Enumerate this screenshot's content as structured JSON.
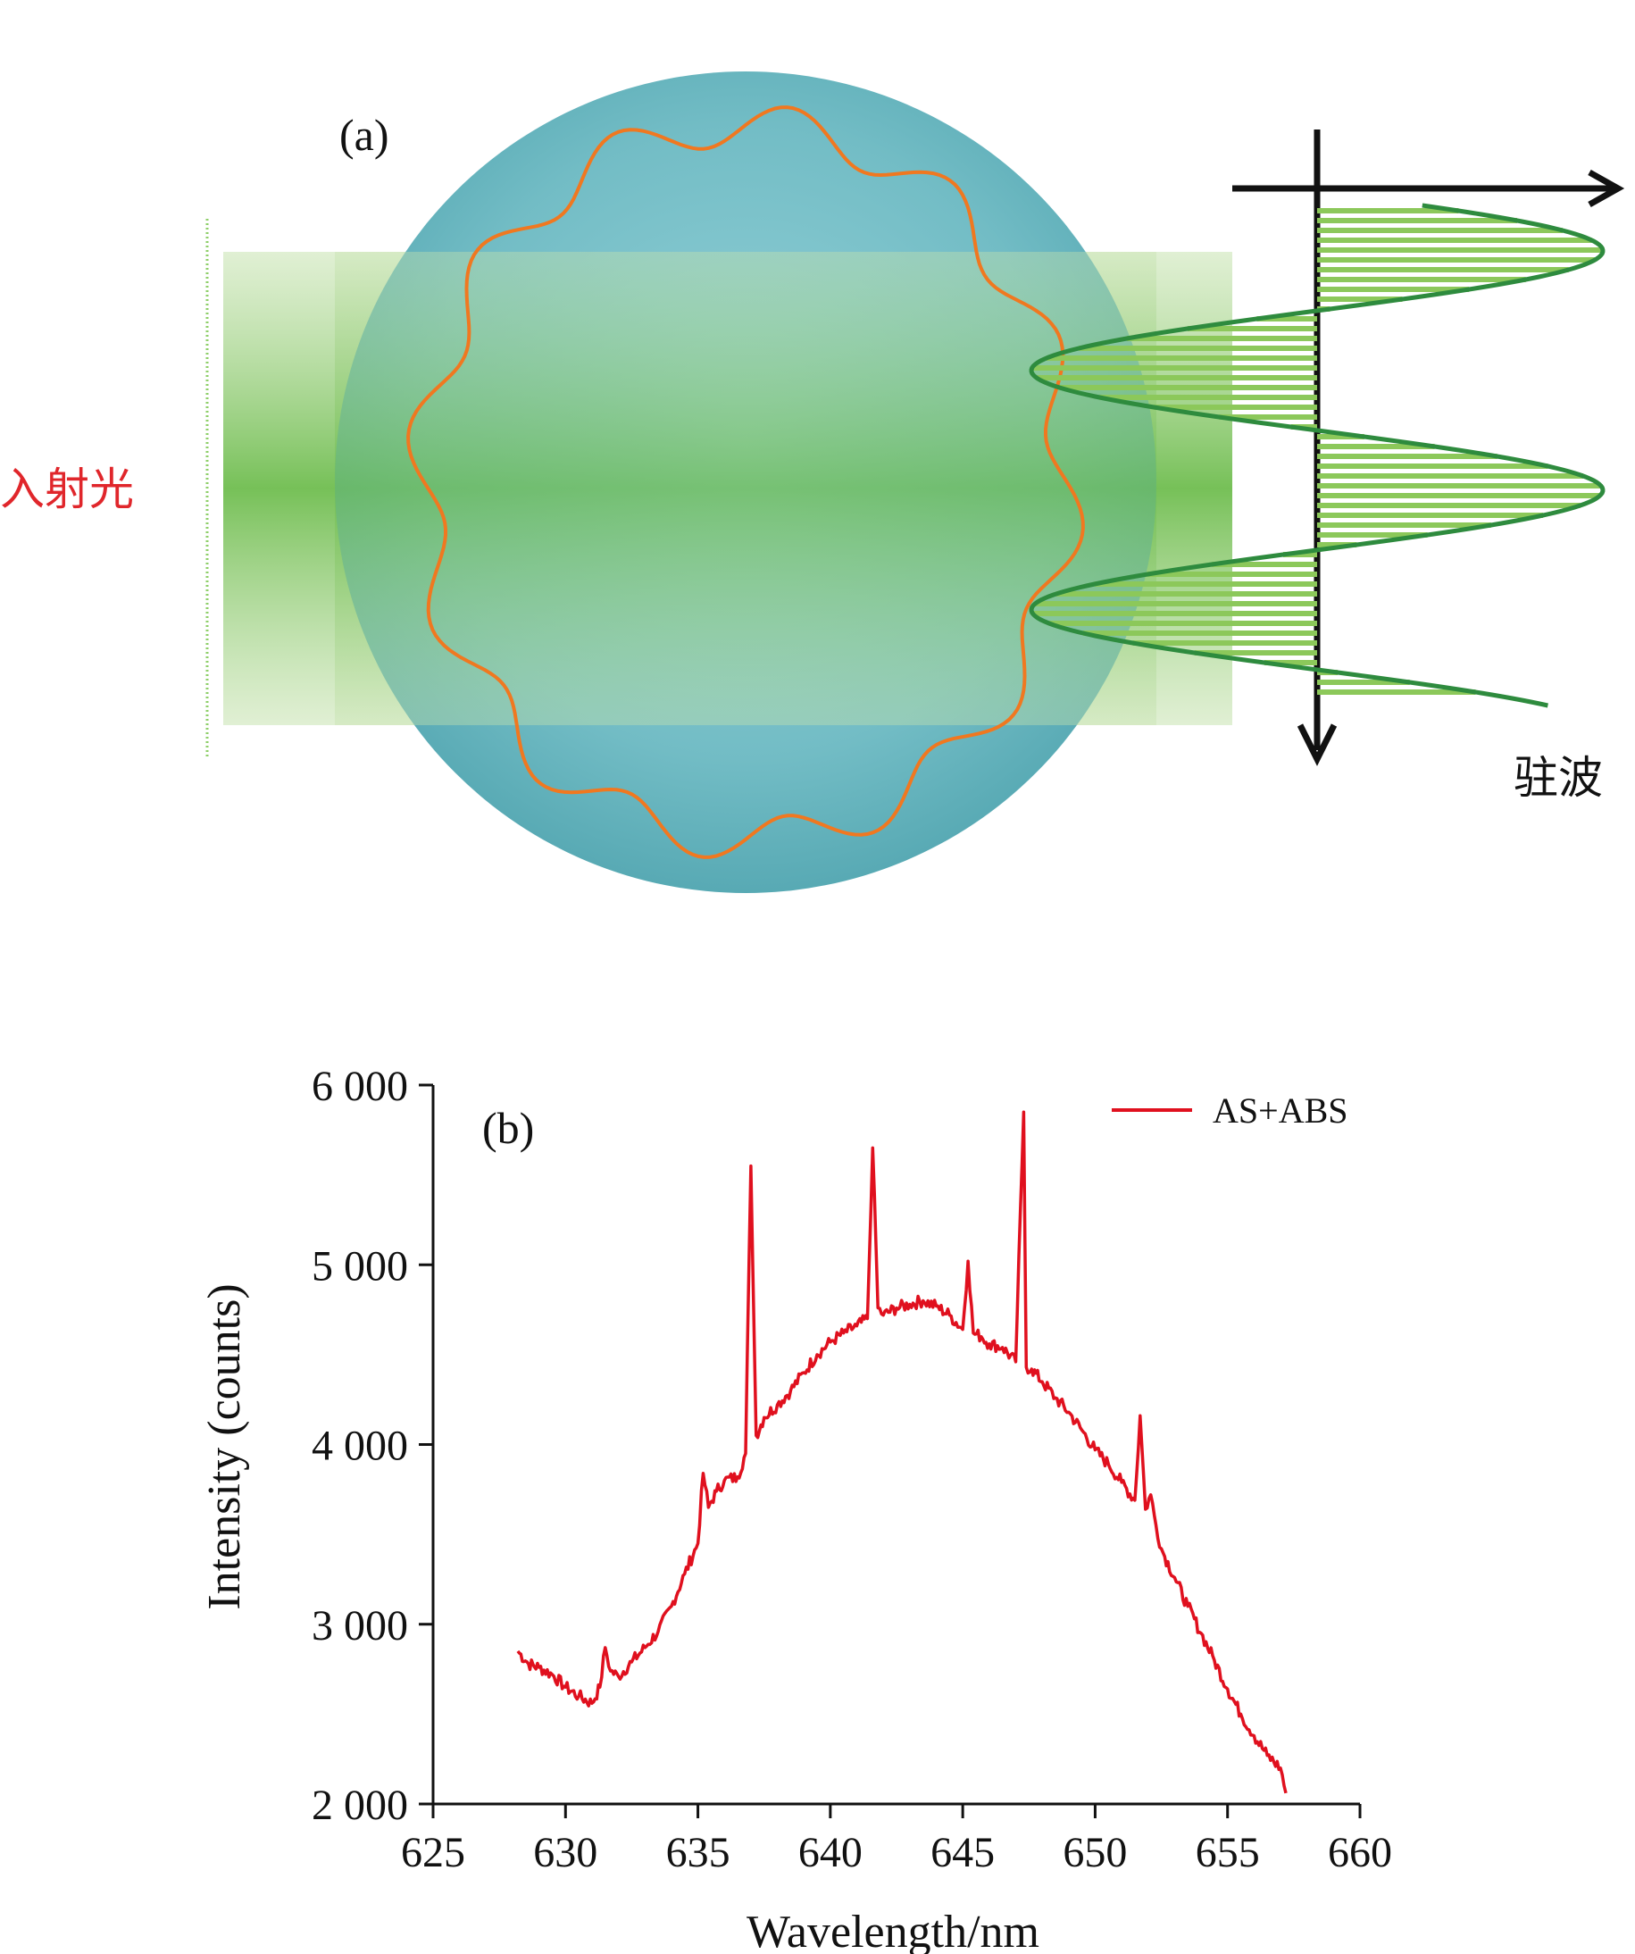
{
  "panel_a": {
    "label": "(a)",
    "incident_light_label": "入射光",
    "standing_wave_label": "驻波",
    "colors": {
      "incident_label": "#e0262b",
      "whispering_wave": "#f07820",
      "standing_wave": "#2e8b3e",
      "beam": "#7cc058",
      "sphere": "#6cb8c0"
    }
  },
  "chart_data": {
    "type": "line",
    "panel_label": "(b)",
    "xlabel": "Wavelength/nm",
    "ylabel": "Intensity (counts)",
    "xlim": [
      625,
      660
    ],
    "ylim": [
      2000,
      6000
    ],
    "x_ticks": [
      625,
      630,
      635,
      640,
      645,
      650,
      655,
      660
    ],
    "y_ticks": [
      2000,
      3000,
      4000,
      5000,
      6000
    ],
    "y_tick_labels": [
      "2 000",
      "3 000",
      "4 000",
      "5 000",
      "6 000"
    ],
    "legend_position": "top-right",
    "grid": false,
    "series": [
      {
        "name": "AS+ABS",
        "color": "#e0101e",
        "x": [
          628.2,
          628.6,
          629.0,
          629.5,
          630.0,
          630.5,
          631.0,
          631.3,
          631.5,
          631.7,
          632.0,
          632.5,
          633.0,
          633.5,
          634.0,
          634.5,
          635.0,
          635.2,
          635.4,
          635.7,
          636.0,
          636.5,
          636.8,
          637.0,
          637.2,
          637.5,
          638.0,
          638.5,
          639.0,
          639.5,
          640.0,
          640.5,
          641.0,
          641.4,
          641.6,
          641.8,
          642.0,
          642.5,
          643.0,
          643.5,
          644.0,
          644.5,
          645.0,
          645.2,
          645.4,
          645.7,
          646.0,
          646.5,
          647.0,
          647.3,
          647.4,
          647.6,
          648.0,
          648.5,
          649.0,
          649.5,
          650.0,
          650.5,
          651.0,
          651.5,
          651.7,
          651.9,
          652.1,
          652.3,
          652.5,
          653.0,
          653.5,
          654.0,
          654.5,
          655.0,
          655.5,
          656.0,
          656.5,
          657.0,
          657.2
        ],
        "values": [
          2850,
          2780,
          2760,
          2720,
          2650,
          2600,
          2560,
          2650,
          2870,
          2740,
          2710,
          2790,
          2870,
          2960,
          3100,
          3280,
          3450,
          3840,
          3650,
          3740,
          3800,
          3820,
          3950,
          5550,
          4050,
          4150,
          4220,
          4300,
          4400,
          4500,
          4570,
          4620,
          4660,
          4700,
          5650,
          4760,
          4720,
          4760,
          4780,
          4800,
          4770,
          4720,
          4640,
          5020,
          4620,
          4600,
          4560,
          4540,
          4460,
          5850,
          4430,
          4420,
          4350,
          4260,
          4180,
          4080,
          3970,
          3890,
          3790,
          3690,
          4160,
          3640,
          3720,
          3550,
          3420,
          3260,
          3100,
          2950,
          2800,
          2640,
          2500,
          2380,
          2270,
          2200,
          2060
        ]
      }
    ]
  }
}
